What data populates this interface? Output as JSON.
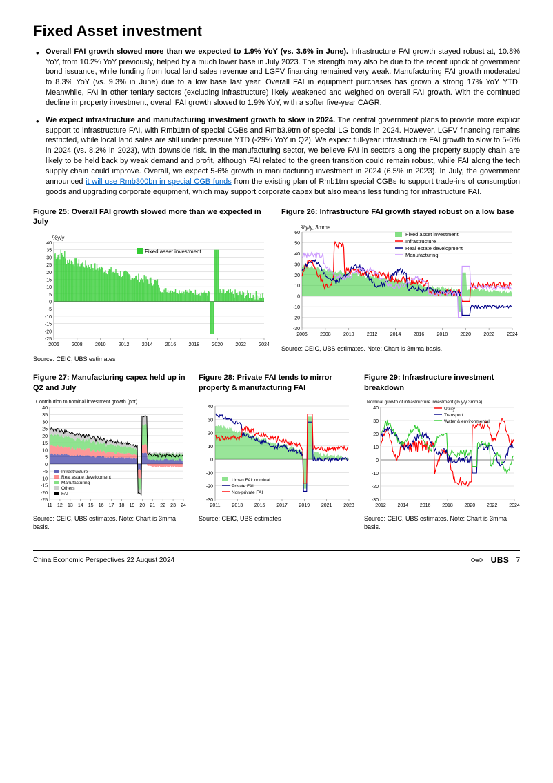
{
  "heading": "Fixed Asset investment",
  "bullets": [
    {
      "lead": "Overall FAI growth slowed more than we expected to 1.9% YoY (vs. 3.6% in June).",
      "body": " Infrastructure FAI growth stayed robust at, 10.8% YoY, from 10.2% YoY previously, helped by a much lower base in July 2023. The strength may also be due to the recent uptick of government bond issuance, while funding from local land sales revenue and LGFV financing remained very weak. Manufacturing FAI growth moderated to 8.3% YoY (vs. 9.3% in June) due to a low base last year. Overall FAI in equipment purchases has grown a strong 17% YoY YTD. Meanwhile, FAI in other tertiary sectors (excluding infrastructure) likely weakened and weighed on overall FAI growth. With the continued decline in property investment, overall FAI growth slowed to 1.9% YoY, with a softer five-year CAGR."
    },
    {
      "lead": "We expect infrastructure and manufacturing investment growth to slow in 2024.",
      "body_before_link": " The central government plans to provide more explicit support to infrastructure FAI, with Rmb1trn of special CGBs and Rmb3.9trn of special LG bonds in 2024. However, LGFV financing remains restricted, while local land sales are still under pressure YTD (-29% YoY in Q2). We expect full-year infrastructure FAI growth to slow to 5-6% in 2024 (vs. 8.2% in 2023), with downside risk. In the manufacturing sector, we believe FAI in sectors along the property supply chain are likely to be held back by weak demand and profit, although FAI related to the green transition could remain robust, while FAI along the tech supply chain could improve. Overall, we expect 5-6% growth in manufacturing investment in 2024 (6.5% in 2023). In July, the government announced ",
      "link_text": "it will use Rmb300bn in special CGB funds",
      "body_after_link": " from the existing plan of Rmb1trn special CGBs to support trade-ins of consumption goods and upgrading corporate equipment, which may support corporate capex but also means less funding for infrastructure FAI."
    }
  ],
  "fig25": {
    "title": "Figure 25: Overall FAI growth slowed more than we expected in July",
    "ylabel": "%y/y",
    "ylim": [
      -25,
      40
    ],
    "ytick_step": 5,
    "xticks": [
      "2006",
      "2008",
      "2010",
      "2012",
      "2014",
      "2016",
      "2018",
      "2020",
      "2022",
      "2024"
    ],
    "series_label": "Fixed asset investment",
    "series_color": "#33cc33",
    "bg": "#ffffff",
    "source": "Source: CEIC, UBS estimates"
  },
  "fig26": {
    "title": "Figure 26: Infrastructure FAI growth stayed robust on a low base",
    "ylabel": "%y/y, 3mma",
    "ylim": [
      -30,
      60
    ],
    "ytick_step": 10,
    "xticks": [
      "2006",
      "2008",
      "2010",
      "2012",
      "2014",
      "2016",
      "2018",
      "2020",
      "2022",
      "2024"
    ],
    "legend": [
      {
        "label": "Fixed asset investment",
        "color": "#33cc33",
        "type": "area"
      },
      {
        "label": "Infrastructure",
        "color": "#ff0000",
        "type": "line"
      },
      {
        "label": "Real estate development",
        "color": "#000088",
        "type": "line"
      },
      {
        "label": "Manufacturing",
        "color": "#cc99ff",
        "type": "line"
      }
    ],
    "bg": "#ffffff",
    "source": "Source: CEIC, UBS estimates. Note: Chart is 3mma basis."
  },
  "fig27": {
    "title": "Figure 27: Manufacturing capex held up in Q2 and July",
    "ylabel": "Contribution to nominal investment growth (ppt)",
    "ylim": [
      -25,
      40
    ],
    "ytick_step": 5,
    "xticks": [
      "11",
      "12",
      "13",
      "14",
      "15",
      "16",
      "17",
      "18",
      "19",
      "20",
      "21",
      "22",
      "23",
      "24"
    ],
    "legend": [
      {
        "label": "Infrastructure",
        "color": "#000088"
      },
      {
        "label": "Real estate development",
        "color": "#ff4444"
      },
      {
        "label": "Manufacturing",
        "color": "#33cc33"
      },
      {
        "label": "Others",
        "color": "#aaaaaa"
      },
      {
        "label": "FAI",
        "color": "#000000"
      }
    ],
    "bg": "#ffffff",
    "source": "Source: CEIC, UBS estimates. Note: Chart is 3mma basis."
  },
  "fig28": {
    "title": "Figure 28: Private FAI tends to mirror property & manufacturing FAI",
    "ylim": [
      -30,
      40
    ],
    "ytick_step": 10,
    "xticks": [
      "2011",
      "2013",
      "2015",
      "2017",
      "2019",
      "2021",
      "2023"
    ],
    "legend": [
      {
        "label": "Urban FAI: nominal",
        "color": "#33cc33",
        "type": "area"
      },
      {
        "label": "Private FAI",
        "color": "#000088",
        "type": "line"
      },
      {
        "label": "Non-private FAI",
        "color": "#ff0000",
        "type": "line"
      }
    ],
    "bg": "#ffffff",
    "source": "Source: CEIC, UBS estimates"
  },
  "fig29": {
    "title": "Figure 29: Infrastructure investment breakdown",
    "ylabel": "Nominal growth of infrastructure investment (% y/y 3mma)",
    "ylim": [
      -30,
      40
    ],
    "ytick_step": 10,
    "xticks": [
      "2012",
      "2014",
      "2016",
      "2018",
      "2020",
      "2022",
      "2024"
    ],
    "legend": [
      {
        "label": "Utility",
        "color": "#ff0000"
      },
      {
        "label": "Transport",
        "color": "#000088"
      },
      {
        "label": "Water & environmental",
        "color": "#33cc33"
      }
    ],
    "bg": "#ffffff",
    "source": "Source: CEIC, UBS estimates. Note: Chart is 3mma basis."
  },
  "footer": {
    "left": "China Economic Perspectives  22 August 2024",
    "brand": "UBS",
    "page": "7"
  },
  "colors": {
    "grid": "#cccccc",
    "axis": "#666666",
    "text": "#000000"
  }
}
